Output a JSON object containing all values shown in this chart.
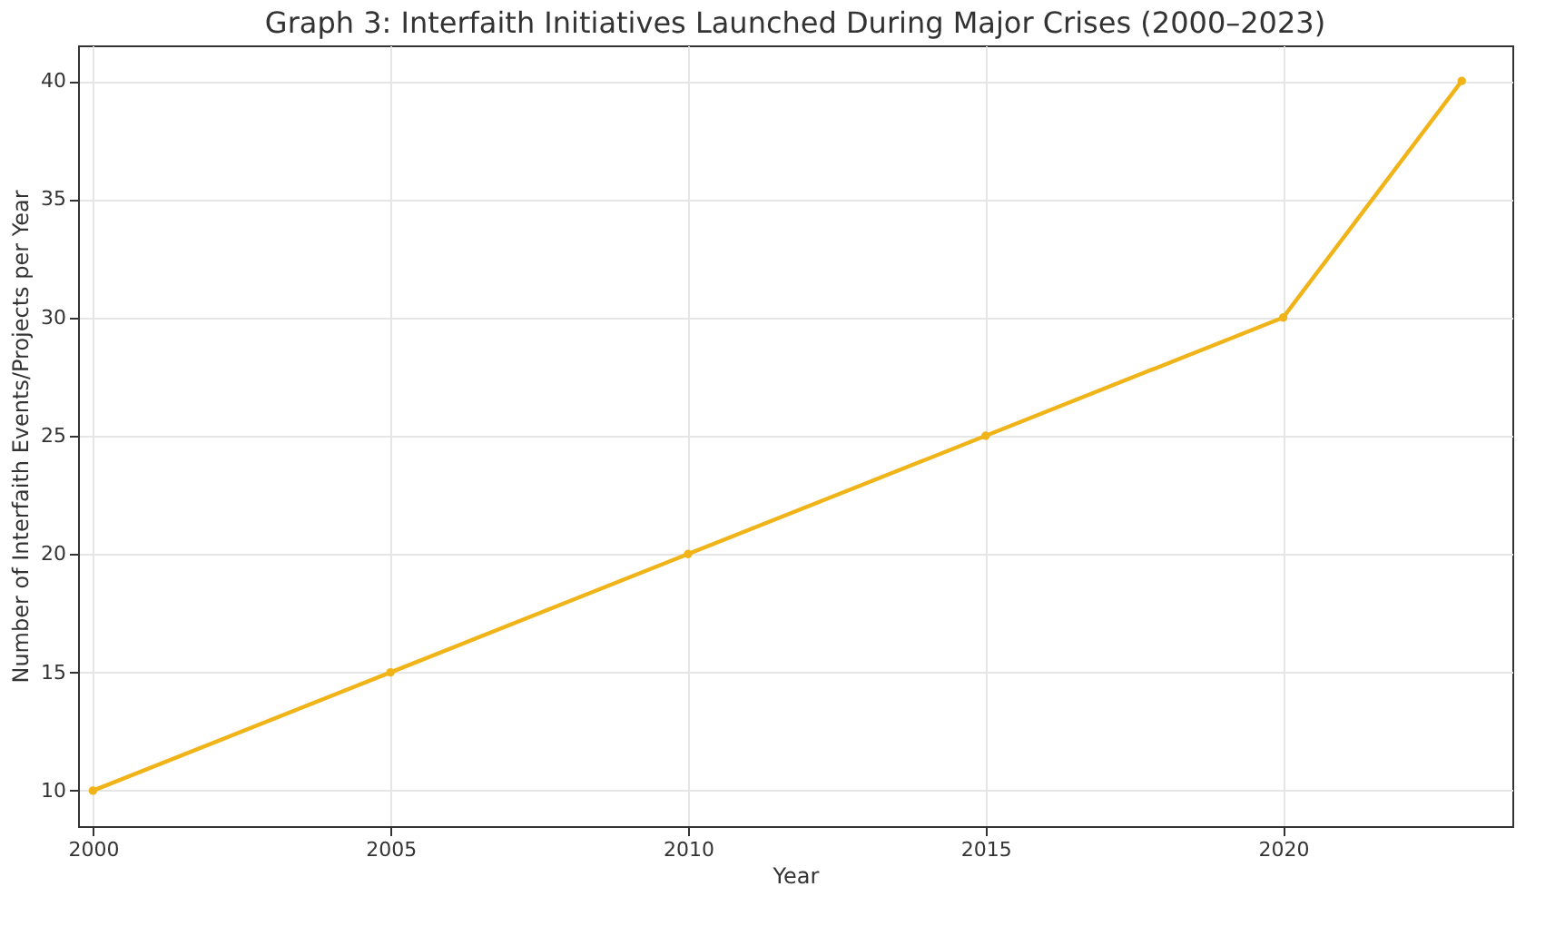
{
  "chart_data": {
    "type": "line",
    "title": "Graph 3: Interfaith Initiatives Launched During Major Crises (2000–2023)",
    "xlabel": "Year",
    "ylabel": "Number of Interfaith Events/Projects per Year",
    "x": [
      2000,
      2005,
      2010,
      2015,
      2020,
      2023
    ],
    "series": [
      {
        "color": "#f0b418",
        "values": [
          10,
          15,
          20,
          25,
          30,
          40
        ]
      }
    ],
    "xlim": [
      1999.75,
      2023.85
    ],
    "ylim": [
      8.5,
      41.5
    ],
    "xticks": [
      2000,
      2005,
      2010,
      2015,
      2020
    ],
    "yticks": [
      10,
      15,
      20,
      25,
      30,
      35,
      40
    ],
    "grid": true,
    "marker": "circle",
    "line_style": "solid"
  }
}
